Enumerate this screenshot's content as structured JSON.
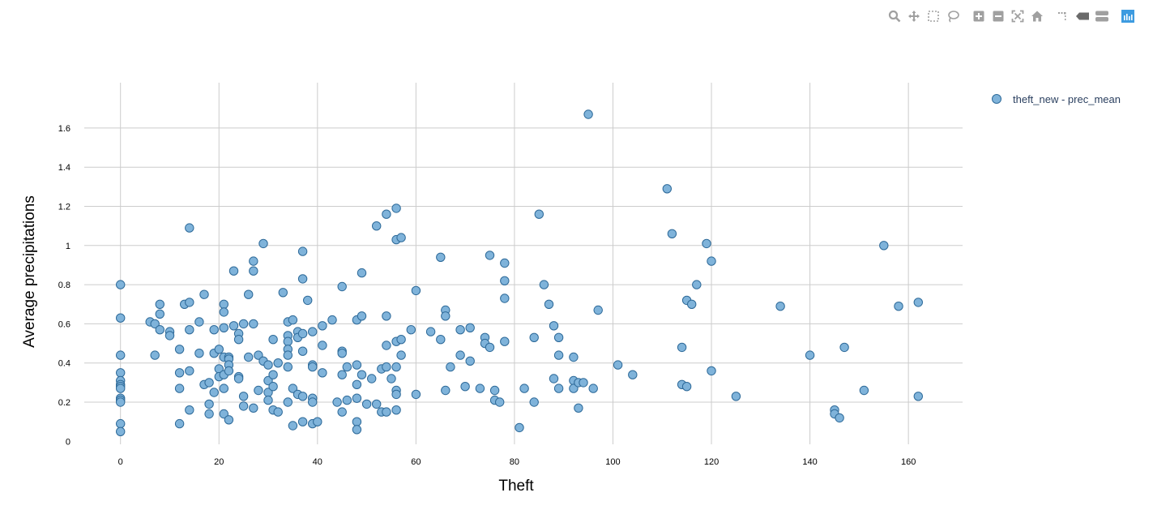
{
  "toolbar": {
    "buttons": [
      {
        "name": "zoom-icon"
      },
      {
        "name": "pan-icon"
      },
      {
        "name": "box-select-icon"
      },
      {
        "name": "lasso-select-icon"
      },
      {
        "name": "zoom-in-icon"
      },
      {
        "name": "zoom-out-icon"
      },
      {
        "name": "autoscale-icon"
      },
      {
        "name": "reset-axes-icon"
      },
      {
        "name": "toggle-spike-lines-icon"
      },
      {
        "name": "hover-closest-icon"
      },
      {
        "name": "hover-compare-icon"
      },
      {
        "name": "plotly-logo-icon"
      }
    ]
  },
  "colors": {
    "marker_fill": "#7fb3da",
    "marker_stroke": "#2e6a99",
    "grid": "#cccccc",
    "toolbar_icon": "#a0a0a0",
    "plotly_logo": "#3d9be0"
  },
  "chart_data": {
    "type": "scatter",
    "title": "",
    "xlabel": "Theft",
    "ylabel": "Average precipitations",
    "xlim": [
      -9,
      171
    ],
    "ylim": [
      -0.04,
      1.79
    ],
    "x_ticks": [
      0,
      20,
      40,
      60,
      80,
      100,
      120,
      140,
      160
    ],
    "x_tick_labels": [
      "0",
      "20",
      "40",
      "60",
      "80",
      "100",
      "120",
      "140",
      "160"
    ],
    "y_ticks": [
      0,
      0.2,
      0.4,
      0.6,
      0.8,
      1,
      1.2,
      1.4,
      1.6
    ],
    "y_tick_labels": [
      "0",
      "0.2",
      "0.4",
      "0.6",
      "0.8",
      "1",
      "1.2",
      "1.4",
      "1.6"
    ],
    "grid": true,
    "legend_position": "top-right",
    "series": [
      {
        "name": "theft_new - prec_mean",
        "points": [
          [
            0,
            0.8
          ],
          [
            0,
            0.63
          ],
          [
            0,
            0.44
          ],
          [
            0,
            0.35
          ],
          [
            0,
            0.31
          ],
          [
            0,
            0.29
          ],
          [
            0,
            0.28
          ],
          [
            0,
            0.27
          ],
          [
            0,
            0.22
          ],
          [
            0,
            0.21
          ],
          [
            0,
            0.2
          ],
          [
            0,
            0.09
          ],
          [
            0,
            0.05
          ],
          [
            6,
            0.61
          ],
          [
            7,
            0.6
          ],
          [
            7,
            0.44
          ],
          [
            8,
            0.7
          ],
          [
            8,
            0.65
          ],
          [
            8,
            0.57
          ],
          [
            10,
            0.56
          ],
          [
            10,
            0.54
          ],
          [
            12,
            0.47
          ],
          [
            12,
            0.35
          ],
          [
            12,
            0.27
          ],
          [
            12,
            0.09
          ],
          [
            13,
            0.7
          ],
          [
            14,
            1.09
          ],
          [
            14,
            0.71
          ],
          [
            14,
            0.57
          ],
          [
            14,
            0.36
          ],
          [
            14,
            0.16
          ],
          [
            16,
            0.61
          ],
          [
            16,
            0.45
          ],
          [
            17,
            0.75
          ],
          [
            17,
            0.29
          ],
          [
            18,
            0.3
          ],
          [
            18,
            0.19
          ],
          [
            18,
            0.14
          ],
          [
            19,
            0.57
          ],
          [
            19,
            0.45
          ],
          [
            19,
            0.25
          ],
          [
            20,
            0.47
          ],
          [
            20,
            0.37
          ],
          [
            20,
            0.33
          ],
          [
            21,
            0.7
          ],
          [
            21,
            0.66
          ],
          [
            21,
            0.58
          ],
          [
            21,
            0.43
          ],
          [
            21,
            0.34
          ],
          [
            21,
            0.27
          ],
          [
            21,
            0.14
          ],
          [
            22,
            0.43
          ],
          [
            22,
            0.42
          ],
          [
            22,
            0.39
          ],
          [
            22,
            0.36
          ],
          [
            22,
            0.11
          ],
          [
            23,
            0.87
          ],
          [
            23,
            0.59
          ],
          [
            24,
            0.55
          ],
          [
            24,
            0.52
          ],
          [
            24,
            0.33
          ],
          [
            24,
            0.32
          ],
          [
            25,
            0.6
          ],
          [
            25,
            0.23
          ],
          [
            25,
            0.18
          ],
          [
            26,
            0.75
          ],
          [
            26,
            0.43
          ],
          [
            27,
            0.92
          ],
          [
            27,
            0.87
          ],
          [
            27,
            0.6
          ],
          [
            27,
            0.17
          ],
          [
            28,
            0.44
          ],
          [
            28,
            0.26
          ],
          [
            29,
            1.01
          ],
          [
            29,
            0.41
          ],
          [
            30,
            0.39
          ],
          [
            30,
            0.31
          ],
          [
            30,
            0.25
          ],
          [
            30,
            0.21
          ],
          [
            31,
            0.52
          ],
          [
            31,
            0.34
          ],
          [
            31,
            0.28
          ],
          [
            31,
            0.16
          ],
          [
            32,
            0.4
          ],
          [
            32,
            0.15
          ],
          [
            33,
            0.76
          ],
          [
            34,
            0.61
          ],
          [
            34,
            0.54
          ],
          [
            34,
            0.51
          ],
          [
            34,
            0.47
          ],
          [
            34,
            0.44
          ],
          [
            34,
            0.38
          ],
          [
            34,
            0.2
          ],
          [
            35,
            0.62
          ],
          [
            35,
            0.27
          ],
          [
            35,
            0.08
          ],
          [
            36,
            0.56
          ],
          [
            36,
            0.53
          ],
          [
            36,
            0.24
          ],
          [
            37,
            0.97
          ],
          [
            37,
            0.83
          ],
          [
            37,
            0.55
          ],
          [
            37,
            0.46
          ],
          [
            37,
            0.23
          ],
          [
            37,
            0.1
          ],
          [
            38,
            0.72
          ],
          [
            39,
            0.56
          ],
          [
            39,
            0.39
          ],
          [
            39,
            0.38
          ],
          [
            39,
            0.22
          ],
          [
            39,
            0.2
          ],
          [
            39,
            0.09
          ],
          [
            40,
            0.1
          ],
          [
            41,
            0.59
          ],
          [
            41,
            0.49
          ],
          [
            41,
            0.35
          ],
          [
            43,
            0.62
          ],
          [
            44,
            0.2
          ],
          [
            45,
            0.79
          ],
          [
            45,
            0.46
          ],
          [
            45,
            0.45
          ],
          [
            45,
            0.34
          ],
          [
            45,
            0.15
          ],
          [
            46,
            0.38
          ],
          [
            46,
            0.21
          ],
          [
            48,
            0.62
          ],
          [
            48,
            0.39
          ],
          [
            48,
            0.29
          ],
          [
            48,
            0.22
          ],
          [
            48,
            0.1
          ],
          [
            48,
            0.06
          ],
          [
            49,
            0.86
          ],
          [
            49,
            0.64
          ],
          [
            49,
            0.34
          ],
          [
            50,
            0.19
          ],
          [
            51,
            0.32
          ],
          [
            52,
            1.1
          ],
          [
            52,
            0.19
          ],
          [
            53,
            0.37
          ],
          [
            53,
            0.15
          ],
          [
            54,
            1.16
          ],
          [
            54,
            0.64
          ],
          [
            54,
            0.49
          ],
          [
            54,
            0.38
          ],
          [
            54,
            0.15
          ],
          [
            55,
            0.32
          ],
          [
            56,
            1.19
          ],
          [
            56,
            1.03
          ],
          [
            56,
            0.51
          ],
          [
            56,
            0.38
          ],
          [
            56,
            0.26
          ],
          [
            56,
            0.24
          ],
          [
            56,
            0.16
          ],
          [
            57,
            1.04
          ],
          [
            57,
            0.52
          ],
          [
            57,
            0.44
          ],
          [
            59,
            0.57
          ],
          [
            60,
            0.77
          ],
          [
            60,
            0.24
          ],
          [
            63,
            0.56
          ],
          [
            65,
            0.94
          ],
          [
            65,
            0.52
          ],
          [
            66,
            0.67
          ],
          [
            66,
            0.64
          ],
          [
            66,
            0.26
          ],
          [
            67,
            0.38
          ],
          [
            69,
            0.57
          ],
          [
            69,
            0.44
          ],
          [
            70,
            0.28
          ],
          [
            71,
            0.58
          ],
          [
            71,
            0.41
          ],
          [
            73,
            0.27
          ],
          [
            74,
            0.53
          ],
          [
            74,
            0.5
          ],
          [
            75,
            0.95
          ],
          [
            75,
            0.48
          ],
          [
            76,
            0.26
          ],
          [
            76,
            0.21
          ],
          [
            77,
            0.2
          ],
          [
            78,
            0.91
          ],
          [
            78,
            0.82
          ],
          [
            78,
            0.73
          ],
          [
            78,
            0.51
          ],
          [
            81,
            0.07
          ],
          [
            82,
            0.27
          ],
          [
            84,
            0.53
          ],
          [
            84,
            0.2
          ],
          [
            85,
            1.16
          ],
          [
            86,
            0.8
          ],
          [
            87,
            0.7
          ],
          [
            88,
            0.59
          ],
          [
            88,
            0.32
          ],
          [
            89,
            0.53
          ],
          [
            89,
            0.44
          ],
          [
            89,
            0.27
          ],
          [
            92,
            0.43
          ],
          [
            92,
            0.31
          ],
          [
            92,
            0.27
          ],
          [
            93,
            0.3
          ],
          [
            93,
            0.17
          ],
          [
            94,
            0.3
          ],
          [
            95,
            1.67
          ],
          [
            96,
            0.27
          ],
          [
            97,
            0.67
          ],
          [
            101,
            0.39
          ],
          [
            104,
            0.34
          ],
          [
            111,
            1.29
          ],
          [
            112,
            1.06
          ],
          [
            114,
            0.48
          ],
          [
            114,
            0.29
          ],
          [
            115,
            0.72
          ],
          [
            115,
            0.28
          ],
          [
            116,
            0.7
          ],
          [
            117,
            0.8
          ],
          [
            119,
            1.01
          ],
          [
            120,
            0.92
          ],
          [
            120,
            0.36
          ],
          [
            125,
            0.23
          ],
          [
            134,
            0.69
          ],
          [
            140,
            0.44
          ],
          [
            145,
            0.16
          ],
          [
            145,
            0.14
          ],
          [
            146,
            0.12
          ],
          [
            147,
            0.48
          ],
          [
            151,
            0.26
          ],
          [
            155,
            1.0
          ],
          [
            158,
            0.69
          ],
          [
            162,
            0.71
          ],
          [
            162,
            0.23
          ]
        ]
      }
    ]
  }
}
